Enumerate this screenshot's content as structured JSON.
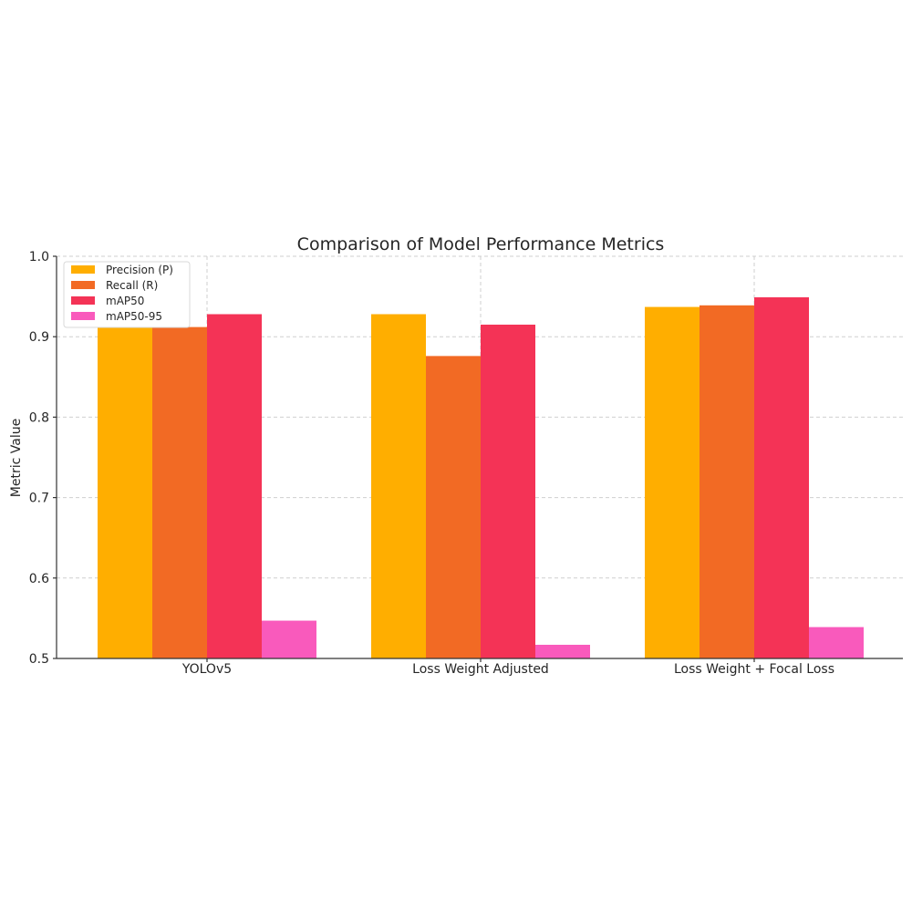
{
  "chart_data": {
    "type": "bar",
    "title": "Comparison of Model Performance Metrics",
    "xlabel": "",
    "ylabel": "Metric Value",
    "ylim": [
      0.5,
      1.0
    ],
    "yticks": [
      "0.5",
      "0.6",
      "0.7",
      "0.8",
      "0.9",
      "1.0"
    ],
    "categories": [
      "YOLOv5",
      "Loss Weight Adjusted",
      "Loss Weight + Focal Loss"
    ],
    "series": [
      {
        "name": "Precision (P)",
        "color": "#FFAE00",
        "values": [
          0.912,
          0.928,
          0.937
        ]
      },
      {
        "name": "Recall (R)",
        "color": "#F26A24",
        "values": [
          0.912,
          0.876,
          0.939
        ]
      },
      {
        "name": "mAP50",
        "color": "#F43356",
        "values": [
          0.928,
          0.915,
          0.949
        ]
      },
      {
        "name": "mAP50-95",
        "color": "#F95ABC",
        "values": [
          0.547,
          0.517,
          0.539
        ]
      }
    ],
    "grid": true,
    "legend": "top-left"
  }
}
